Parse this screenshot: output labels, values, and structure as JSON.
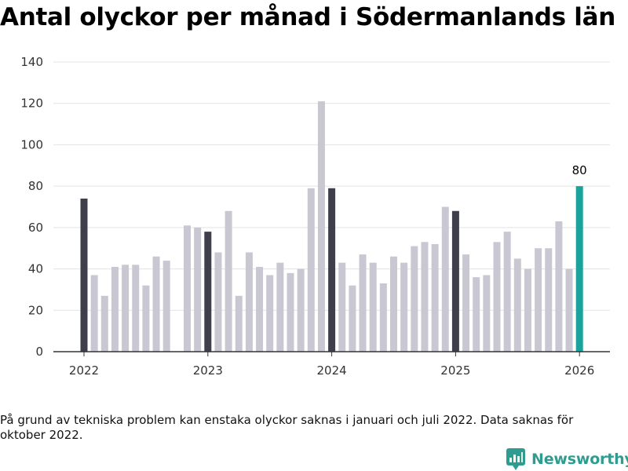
{
  "title": "Antal olyckor per månad i Södermanlands län",
  "note": "På grund av tekniska problem kan enstaka olyckor saknas i januari och juli 2022. Data saknas för oktober 2022.",
  "brand": {
    "name": "Newsworthy",
    "icon": "newsworthy-logo-icon"
  },
  "colors": {
    "regular": "#c9c8d2",
    "january": "#3f3f4c",
    "latest": "#1aa39a"
  },
  "chart_data": {
    "type": "bar",
    "title": "Antal olyckor per månad i Södermanlands län",
    "xlabel": "",
    "ylabel": "",
    "ylim": [
      0,
      140
    ],
    "yticks": [
      0,
      20,
      40,
      60,
      80,
      100,
      120,
      140
    ],
    "xticks": [
      {
        "label": "2022",
        "index": 0
      },
      {
        "label": "2023",
        "index": 12
      },
      {
        "label": "2024",
        "index": 24
      },
      {
        "label": "2025",
        "index": 36
      },
      {
        "label": "2026",
        "index": 48
      }
    ],
    "categories": [
      "2022-01",
      "2022-02",
      "2022-03",
      "2022-04",
      "2022-05",
      "2022-06",
      "2022-07",
      "2022-08",
      "2022-09",
      "2022-10",
      "2022-11",
      "2022-12",
      "2023-01",
      "2023-02",
      "2023-03",
      "2023-04",
      "2023-05",
      "2023-06",
      "2023-07",
      "2023-08",
      "2023-09",
      "2023-10",
      "2023-11",
      "2023-12",
      "2024-01",
      "2024-02",
      "2024-03",
      "2024-04",
      "2024-05",
      "2024-06",
      "2024-07",
      "2024-08",
      "2024-09",
      "2024-10",
      "2024-11",
      "2024-12",
      "2025-01",
      "2025-02",
      "2025-03",
      "2025-04",
      "2025-05",
      "2025-06",
      "2025-07",
      "2025-08",
      "2025-09",
      "2025-10",
      "2025-11",
      "2025-12",
      "2026-01"
    ],
    "values": [
      74,
      37,
      27,
      41,
      42,
      42,
      32,
      46,
      44,
      null,
      61,
      60,
      58,
      48,
      68,
      27,
      48,
      41,
      37,
      43,
      38,
      40,
      79,
      121,
      79,
      43,
      32,
      47,
      43,
      33,
      46,
      43,
      51,
      53,
      52,
      70,
      68,
      47,
      36,
      37,
      53,
      58,
      45,
      40,
      50,
      50,
      63,
      40,
      80
    ],
    "highlight_label": "80"
  }
}
